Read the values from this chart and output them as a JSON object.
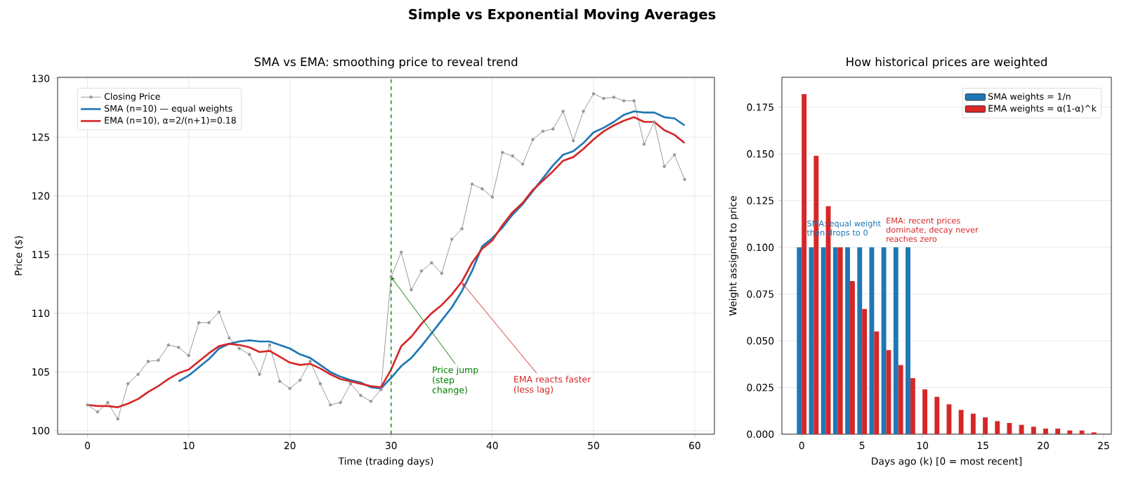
{
  "chart_data": [
    {
      "type": "line",
      "title": "SMA vs EMA: smoothing price to reveal trend",
      "xlabel": "Time (trading days)",
      "ylabel": "Price ($)",
      "annotations": [
        "Simple vs Exponential Moving Averages",
        {
          "text": "Price jump (step change)",
          "x": 30,
          "y": 113.1
        },
        {
          "text": "EMA reacts faster (less lag)",
          "x": 37,
          "y": 112.6
        }
      ],
      "x": [
        0,
        1,
        2,
        3,
        4,
        5,
        6,
        7,
        8,
        9,
        10,
        11,
        12,
        13,
        14,
        15,
        16,
        17,
        18,
        19,
        20,
        21,
        22,
        23,
        24,
        25,
        26,
        27,
        28,
        29,
        30,
        31,
        32,
        33,
        34,
        35,
        36,
        37,
        38,
        39,
        40,
        41,
        42,
        43,
        44,
        45,
        46,
        47,
        48,
        49,
        50,
        51,
        52,
        53,
        54,
        55,
        56,
        57,
        58,
        59
      ],
      "series": [
        {
          "name": "Closing Price",
          "color": "#999999",
          "marker": "circle",
          "values": [
            102.2,
            101.6,
            102.4,
            101.0,
            104.0,
            104.8,
            105.9,
            106.0,
            107.3,
            107.1,
            106.4,
            109.2,
            109.2,
            110.1,
            107.9,
            107.0,
            106.5,
            104.8,
            107.3,
            104.2,
            103.6,
            104.3,
            105.9,
            104.0,
            102.2,
            102.4,
            104.0,
            103.0,
            102.5,
            103.5,
            113.1,
            115.2,
            112.0,
            113.6,
            114.3,
            113.4,
            116.3,
            117.2,
            121.0,
            120.6,
            119.9,
            123.7,
            123.4,
            122.7,
            124.8,
            125.5,
            125.7,
            127.2,
            124.7,
            127.2,
            128.7,
            128.3,
            128.4,
            128.1,
            128.1,
            124.4,
            126.3,
            122.5,
            123.5,
            121.4
          ]
        },
        {
          "name": "SMA (n=10) — equal weights",
          "color": "#1f77b4",
          "x": [
            9,
            10,
            11,
            12,
            13,
            14,
            15,
            16,
            17,
            18,
            19,
            20,
            21,
            22,
            23,
            24,
            25,
            26,
            27,
            28,
            29,
            30,
            31,
            32,
            33,
            34,
            35,
            36,
            37,
            38,
            39,
            40,
            41,
            42,
            43,
            44,
            45,
            46,
            47,
            48,
            49,
            50,
            51,
            52,
            53,
            54,
            55,
            56,
            57,
            58,
            59
          ],
          "values": [
            104.2,
            104.7,
            105.4,
            106.1,
            107.0,
            107.4,
            107.6,
            107.7,
            107.6,
            107.6,
            107.3,
            107.0,
            106.5,
            106.2,
            105.6,
            105.0,
            104.6,
            104.3,
            104.1,
            103.7,
            103.6,
            104.5,
            105.5,
            106.2,
            107.2,
            108.3,
            109.4,
            110.5,
            111.9,
            113.6,
            115.7,
            116.4,
            117.3,
            118.4,
            119.3,
            120.4,
            121.5,
            122.6,
            123.5,
            123.8,
            124.5,
            125.4,
            125.8,
            126.3,
            126.9,
            127.2,
            127.1,
            127.1,
            126.7,
            126.6,
            126.0
          ]
        },
        {
          "name": "EMA (n=10), α=2/(n+1)=0.18",
          "color": "#d62728",
          "values": [
            102.2,
            102.1,
            102.1,
            102.0,
            102.3,
            102.7,
            103.3,
            103.8,
            104.4,
            104.9,
            105.2,
            105.9,
            106.6,
            107.2,
            107.4,
            107.3,
            107.1,
            106.7,
            106.8,
            106.3,
            105.8,
            105.6,
            105.7,
            105.3,
            104.8,
            104.4,
            104.2,
            104.0,
            103.8,
            103.7,
            105.2,
            107.2,
            108.0,
            109.1,
            110.0,
            110.7,
            111.6,
            112.7,
            114.3,
            115.5,
            116.2,
            117.5,
            118.6,
            119.4,
            120.5,
            121.3,
            122.1,
            123.0,
            123.3,
            124.0,
            124.8,
            125.5,
            126.0,
            126.4,
            126.7,
            126.3,
            126.3,
            125.6,
            125.2,
            124.5
          ]
        }
      ],
      "ref_lines": [
        {
          "axis": "x",
          "value": 30,
          "color": "#008000",
          "line_style": "dashed"
        }
      ],
      "xlim": [
        -2.95,
        61.95
      ],
      "ylim": [
        99.7,
        130.1
      ],
      "xticks": [
        0,
        10,
        20,
        30,
        40,
        50,
        60
      ],
      "yticks": [
        100,
        105,
        110,
        115,
        120,
        125,
        130
      ],
      "grid": true,
      "legend": "top left",
      "marker": "none",
      "line_style": "solid"
    },
    {
      "type": "bar",
      "title": "How historical prices are weighted",
      "xlabel": "Days ago (k)  [0 = most recent]",
      "ylabel": "Weight assigned to price",
      "annotations": [
        "SMA: equal weight then drops to 0",
        "EMA: recent prices dominate, decay never reaches zero"
      ],
      "x": [
        0,
        1,
        2,
        3,
        4,
        5,
        6,
        7,
        8,
        9,
        10,
        11,
        12,
        13,
        14,
        15,
        16,
        17,
        18,
        19,
        20,
        21,
        22,
        23,
        24
      ],
      "series": [
        {
          "name": "SMA weights = 1/n",
          "color": "#1f77b4",
          "x": [
            0,
            1,
            2,
            3,
            4,
            5,
            6,
            7,
            8,
            9
          ],
          "values": [
            0.1,
            0.1,
            0.1,
            0.1,
            0.1,
            0.1,
            0.1,
            0.1,
            0.1,
            0.1
          ]
        },
        {
          "name": "EMA weights = α(1-α)^k",
          "color": "#d62728",
          "values": [
            0.182,
            0.149,
            0.122,
            0.1,
            0.082,
            0.067,
            0.055,
            0.045,
            0.037,
            0.03,
            0.024,
            0.02,
            0.016,
            0.013,
            0.011,
            0.009,
            0.007,
            0.006,
            0.005,
            0.004,
            0.003,
            0.003,
            0.002,
            0.002,
            0.001
          ]
        }
      ],
      "xlim": [
        -1.64,
        25.64
      ],
      "ylim": [
        0,
        0.191
      ],
      "xticks": [
        0,
        5,
        10,
        15,
        20,
        25
      ],
      "yticks": [
        {
          "value": 0,
          "label": "0.000"
        },
        {
          "value": 0.025,
          "label": "0.025"
        },
        {
          "value": 0.05,
          "label": "0.050"
        },
        {
          "value": 0.075,
          "label": "0.075"
        },
        {
          "value": 0.1,
          "label": "0.100"
        },
        {
          "value": 0.125,
          "label": "0.125"
        },
        {
          "value": 0.15,
          "label": "0.150"
        },
        {
          "value": 0.175,
          "label": "0.175"
        }
      ],
      "grid": "y",
      "legend": "top right"
    }
  ]
}
